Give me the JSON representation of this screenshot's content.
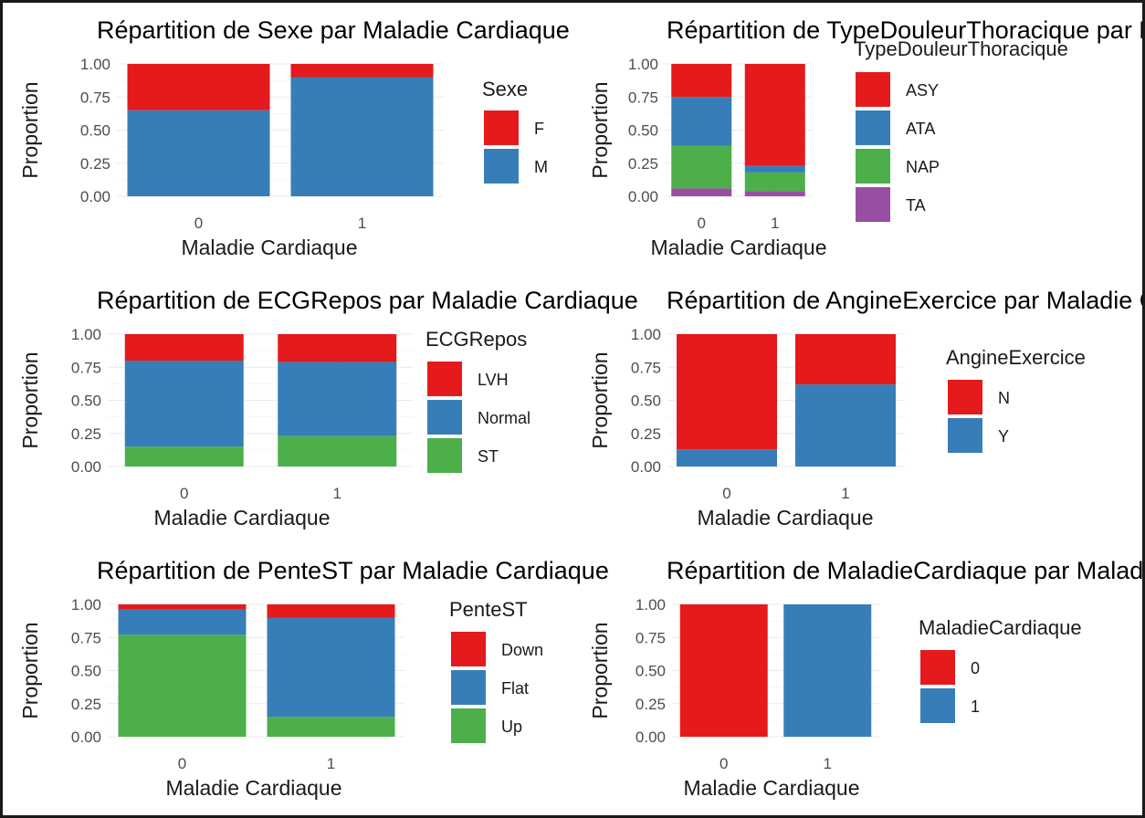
{
  "colors": {
    "red": "#E41A1C",
    "blue": "#377EB8",
    "green": "#4DAF4A",
    "purple": "#984EA3"
  },
  "chart_data": [
    {
      "type": "bar",
      "stacked": true,
      "title": "Répartition de Sexe par Maladie Cardiaque",
      "xlabel": "Maladie Cardiaque",
      "ylabel": "Proportion",
      "categories": [
        "0",
        "1"
      ],
      "yticks": [
        "0.00",
        "0.25",
        "0.50",
        "0.75",
        "1.00"
      ],
      "ylim": [
        0,
        1
      ],
      "legend_title": "Sexe",
      "legend_position": "right",
      "series": [
        {
          "name": "F",
          "color": "#E41A1C",
          "values": [
            0.35,
            0.1
          ]
        },
        {
          "name": "M",
          "color": "#377EB8",
          "values": [
            0.65,
            0.9
          ]
        }
      ]
    },
    {
      "type": "bar",
      "stacked": true,
      "title": "Répartition de TypeDouleurThoracique par Maladie Cardiaque",
      "xlabel": "Maladie Cardiaque",
      "ylabel": "Proportion",
      "categories": [
        "0",
        "1"
      ],
      "yticks": [
        "0.00",
        "0.25",
        "0.50",
        "0.75",
        "1.00"
      ],
      "ylim": [
        0,
        1
      ],
      "legend_title": "TypeDouleurThoracique",
      "legend_position": "right",
      "series": [
        {
          "name": "ASY",
          "color": "#E41A1C",
          "values": [
            0.25,
            0.77
          ]
        },
        {
          "name": "ATA",
          "color": "#377EB8",
          "values": [
            0.37,
            0.05
          ]
        },
        {
          "name": "NAP",
          "color": "#4DAF4A",
          "values": [
            0.32,
            0.14
          ]
        },
        {
          "name": "TA",
          "color": "#984EA3",
          "values": [
            0.06,
            0.04
          ]
        }
      ]
    },
    {
      "type": "bar",
      "stacked": true,
      "title": "Répartition de ECGRepos par Maladie Cardiaque",
      "xlabel": "Maladie Cardiaque",
      "ylabel": "Proportion",
      "categories": [
        "0",
        "1"
      ],
      "yticks": [
        "0.00",
        "0.25",
        "0.50",
        "0.75",
        "1.00"
      ],
      "ylim": [
        0,
        1
      ],
      "legend_title": "ECGRepos",
      "legend_position": "right",
      "series": [
        {
          "name": "LVH",
          "color": "#E41A1C",
          "values": [
            0.2,
            0.21
          ]
        },
        {
          "name": "Normal",
          "color": "#377EB8",
          "values": [
            0.65,
            0.56
          ]
        },
        {
          "name": "ST",
          "color": "#4DAF4A",
          "values": [
            0.15,
            0.23
          ]
        }
      ]
    },
    {
      "type": "bar",
      "stacked": true,
      "title": "Répartition de AngineExercice par Maladie Cardiaque",
      "xlabel": "Maladie Cardiaque",
      "ylabel": "Proportion",
      "categories": [
        "0",
        "1"
      ],
      "yticks": [
        "0.00",
        "0.25",
        "0.50",
        "0.75",
        "1.00"
      ],
      "ylim": [
        0,
        1
      ],
      "legend_title": "AngineExercice",
      "legend_position": "right",
      "series": [
        {
          "name": "N",
          "color": "#E41A1C",
          "values": [
            0.87,
            0.38
          ]
        },
        {
          "name": "Y",
          "color": "#377EB8",
          "values": [
            0.13,
            0.62
          ]
        }
      ]
    },
    {
      "type": "bar",
      "stacked": true,
      "title": "Répartition de PenteST par Maladie Cardiaque",
      "xlabel": "Maladie Cardiaque",
      "ylabel": "Proportion",
      "categories": [
        "0",
        "1"
      ],
      "yticks": [
        "0.00",
        "0.25",
        "0.50",
        "0.75",
        "1.00"
      ],
      "ylim": [
        0,
        1
      ],
      "legend_title": "PenteST",
      "legend_position": "right",
      "series": [
        {
          "name": "Down",
          "color": "#E41A1C",
          "values": [
            0.04,
            0.1
          ]
        },
        {
          "name": "Flat",
          "color": "#377EB8",
          "values": [
            0.19,
            0.75
          ]
        },
        {
          "name": "Up",
          "color": "#4DAF4A",
          "values": [
            0.77,
            0.15
          ]
        }
      ]
    },
    {
      "type": "bar",
      "stacked": true,
      "title": "Répartition de MaladieCardiaque par Maladie Cardiaque",
      "xlabel": "Maladie Cardiaque",
      "ylabel": "Proportion",
      "categories": [
        "0",
        "1"
      ],
      "yticks": [
        "0.00",
        "0.25",
        "0.50",
        "0.75",
        "1.00"
      ],
      "ylim": [
        0,
        1
      ],
      "legend_title": "MaladieCardiaque",
      "legend_position": "right",
      "series": [
        {
          "name": "0",
          "color": "#E41A1C",
          "values": [
            1.0,
            0.0
          ]
        },
        {
          "name": "1",
          "color": "#377EB8",
          "values": [
            0.0,
            1.0
          ]
        }
      ]
    }
  ]
}
